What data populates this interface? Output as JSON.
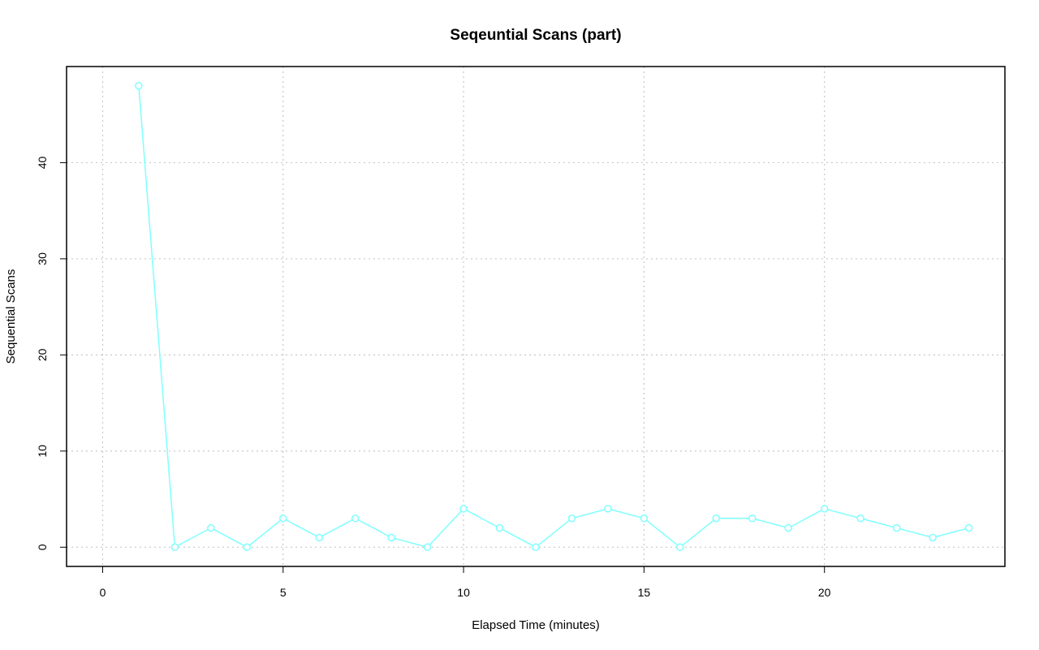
{
  "chart_data": {
    "type": "line",
    "title": "Seqeuntial Scans (part)",
    "xlabel": "Elapsed Time (minutes)",
    "ylabel": "Sequential Scans",
    "xlim": [
      -1,
      25
    ],
    "ylim": [
      -2,
      50
    ],
    "x_ticks": [
      0,
      5,
      10,
      15,
      20
    ],
    "y_ticks": [
      0,
      10,
      20,
      30,
      40
    ],
    "grid": true,
    "legend": "none",
    "series": [
      {
        "color": "#7fffff",
        "marker": "open-circle",
        "x": [
          1,
          2,
          3,
          4,
          5,
          6,
          7,
          8,
          9,
          10,
          11,
          12,
          13,
          14,
          15,
          16,
          17,
          18,
          19,
          20,
          21,
          22,
          23,
          24
        ],
        "y": [
          48,
          0,
          2,
          0,
          3,
          1,
          3,
          1,
          0,
          4,
          2,
          0,
          3,
          4,
          3,
          0,
          3,
          3,
          2,
          4,
          3,
          2,
          1,
          2
        ]
      }
    ]
  }
}
